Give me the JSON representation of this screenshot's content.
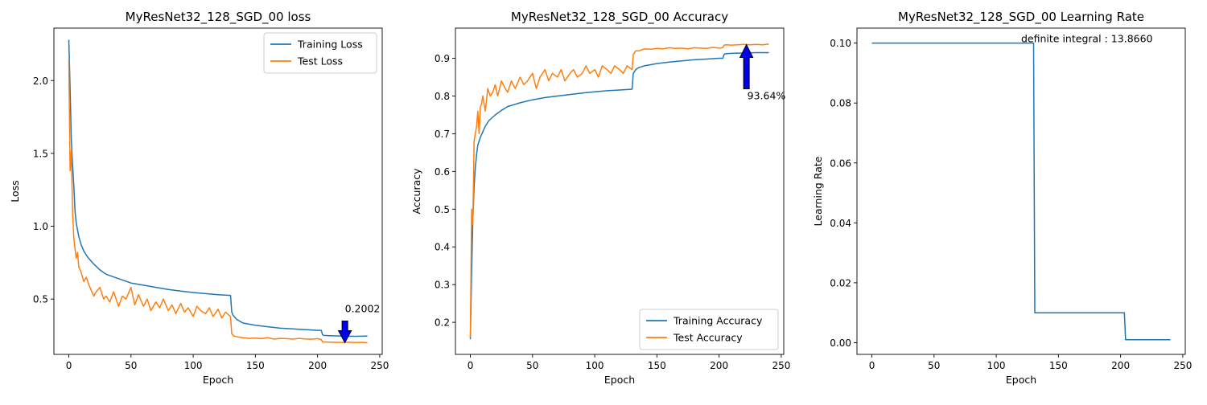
{
  "chart_data": [
    {
      "type": "line",
      "title": "MyResNet32_128_SGD_00 loss",
      "xlabel": "Epoch",
      "ylabel": "Loss",
      "xlim": [
        -12,
        252
      ],
      "ylim": [
        0.12,
        2.36
      ],
      "xticks": [
        0,
        50,
        100,
        150,
        200,
        250
      ],
      "yticks": [
        0.5,
        1.0,
        1.5,
        2.0
      ],
      "xtick_labels": [
        "0",
        "50",
        "100",
        "150",
        "200",
        "250"
      ],
      "ytick_labels": [
        "0.5",
        "1.0",
        "1.5",
        "2.0"
      ],
      "legend_position": "upper right",
      "annotation": {
        "text": "0.2002",
        "x": 222,
        "y": 0.2002,
        "direction": "down"
      },
      "series": [
        {
          "name": "Training Loss",
          "color": "#1f77b4",
          "x": [
            0,
            1,
            2,
            3,
            4,
            5,
            6,
            8,
            10,
            12,
            15,
            20,
            25,
            30,
            40,
            50,
            60,
            70,
            80,
            90,
            100,
            110,
            120,
            130,
            131,
            132,
            135,
            140,
            150,
            160,
            170,
            180,
            190,
            200,
            203,
            204,
            205,
            210,
            220,
            230,
            240
          ],
          "y": [
            2.28,
            1.95,
            1.6,
            1.42,
            1.28,
            1.1,
            1.02,
            0.93,
            0.87,
            0.83,
            0.79,
            0.74,
            0.7,
            0.67,
            0.64,
            0.61,
            0.595,
            0.58,
            0.565,
            0.555,
            0.545,
            0.537,
            0.53,
            0.525,
            0.41,
            0.39,
            0.36,
            0.335,
            0.32,
            0.31,
            0.3,
            0.295,
            0.29,
            0.285,
            0.285,
            0.255,
            0.25,
            0.248,
            0.245,
            0.244,
            0.245
          ]
        },
        {
          "name": "Test Loss",
          "color": "#ff7f0e",
          "x": [
            0,
            1,
            2,
            3,
            4,
            5,
            6,
            7,
            8,
            9,
            10,
            12,
            14,
            16,
            18,
            20,
            22,
            25,
            28,
            30,
            33,
            36,
            40,
            43,
            46,
            50,
            53,
            56,
            60,
            63,
            66,
            70,
            73,
            76,
            80,
            83,
            86,
            90,
            93,
            96,
            100,
            103,
            106,
            110,
            113,
            116,
            120,
            123,
            126,
            130,
            131,
            133,
            136,
            140,
            145,
            150,
            155,
            160,
            165,
            170,
            175,
            180,
            185,
            190,
            195,
            200,
            203,
            204,
            206,
            210,
            215,
            220,
            225,
            230,
            235,
            240
          ],
          "y": [
            2.15,
            1.38,
            1.52,
            1.1,
            0.92,
            0.84,
            0.78,
            0.82,
            0.72,
            0.7,
            0.68,
            0.62,
            0.65,
            0.6,
            0.56,
            0.52,
            0.55,
            0.58,
            0.5,
            0.52,
            0.48,
            0.55,
            0.45,
            0.52,
            0.5,
            0.58,
            0.46,
            0.53,
            0.45,
            0.5,
            0.42,
            0.48,
            0.44,
            0.5,
            0.42,
            0.46,
            0.4,
            0.47,
            0.41,
            0.44,
            0.38,
            0.45,
            0.42,
            0.4,
            0.44,
            0.38,
            0.43,
            0.37,
            0.41,
            0.38,
            0.26,
            0.245,
            0.24,
            0.235,
            0.23,
            0.232,
            0.228,
            0.235,
            0.225,
            0.23,
            0.228,
            0.225,
            0.23,
            0.226,
            0.224,
            0.228,
            0.222,
            0.205,
            0.205,
            0.204,
            0.203,
            0.202,
            0.204,
            0.201,
            0.203,
            0.2
          ]
        }
      ]
    },
    {
      "type": "line",
      "title": "MyResNet32_128_SGD_00 Accuracy",
      "xlabel": "Epoch",
      "ylabel": "Accuracy",
      "xlim": [
        -12,
        252
      ],
      "ylim": [
        0.115,
        0.98
      ],
      "xticks": [
        0,
        50,
        100,
        150,
        200,
        250
      ],
      "yticks": [
        0.2,
        0.3,
        0.4,
        0.5,
        0.6,
        0.7,
        0.8,
        0.9
      ],
      "xtick_labels": [
        "0",
        "50",
        "100",
        "150",
        "200",
        "250"
      ],
      "ytick_labels": [
        "0.2",
        "0.3",
        "0.4",
        "0.5",
        "0.6",
        "0.7",
        "0.8",
        "0.9"
      ],
      "legend_position": "lower right",
      "annotation": {
        "text": "93.64%",
        "x": 222,
        "y": 0.9364,
        "direction": "up"
      },
      "series": [
        {
          "name": "Training Accuracy",
          "color": "#1f77b4",
          "x": [
            0,
            1,
            2,
            3,
            4,
            5,
            6,
            8,
            10,
            12,
            15,
            20,
            25,
            30,
            40,
            50,
            60,
            70,
            80,
            90,
            100,
            110,
            120,
            130,
            131,
            133,
            135,
            140,
            150,
            160,
            170,
            180,
            190,
            200,
            203,
            204,
            205,
            210,
            220,
            230,
            240
          ],
          "y": [
            0.155,
            0.33,
            0.47,
            0.56,
            0.61,
            0.645,
            0.67,
            0.69,
            0.705,
            0.72,
            0.735,
            0.75,
            0.762,
            0.772,
            0.782,
            0.79,
            0.796,
            0.8,
            0.804,
            0.808,
            0.811,
            0.814,
            0.816,
            0.818,
            0.86,
            0.87,
            0.875,
            0.88,
            0.886,
            0.89,
            0.893,
            0.896,
            0.898,
            0.9,
            0.9,
            0.91,
            0.912,
            0.913,
            0.914,
            0.915,
            0.915
          ]
        },
        {
          "name": "Test Accuracy",
          "color": "#ff7f0e",
          "x": [
            0,
            1,
            2,
            3,
            4,
            5,
            6,
            7,
            8,
            9,
            10,
            12,
            14,
            16,
            18,
            20,
            22,
            25,
            28,
            30,
            33,
            36,
            40,
            43,
            46,
            50,
            53,
            56,
            60,
            63,
            66,
            70,
            73,
            76,
            80,
            83,
            86,
            90,
            93,
            96,
            100,
            103,
            106,
            110,
            113,
            116,
            120,
            123,
            126,
            130,
            131,
            133,
            136,
            140,
            145,
            150,
            155,
            160,
            165,
            170,
            175,
            180,
            185,
            190,
            195,
            200,
            203,
            204,
            206,
            210,
            215,
            220,
            225,
            230,
            235,
            240
          ],
          "y": [
            0.16,
            0.5,
            0.46,
            0.68,
            0.7,
            0.72,
            0.76,
            0.7,
            0.77,
            0.78,
            0.8,
            0.76,
            0.82,
            0.8,
            0.81,
            0.83,
            0.8,
            0.84,
            0.82,
            0.81,
            0.84,
            0.82,
            0.85,
            0.83,
            0.84,
            0.86,
            0.82,
            0.85,
            0.87,
            0.84,
            0.86,
            0.85,
            0.87,
            0.84,
            0.86,
            0.87,
            0.85,
            0.86,
            0.88,
            0.86,
            0.87,
            0.85,
            0.88,
            0.87,
            0.86,
            0.88,
            0.87,
            0.86,
            0.88,
            0.87,
            0.91,
            0.92,
            0.92,
            0.925,
            0.924,
            0.926,
            0.925,
            0.928,
            0.926,
            0.927,
            0.925,
            0.928,
            0.927,
            0.926,
            0.929,
            0.927,
            0.928,
            0.935,
            0.936,
            0.935,
            0.936,
            0.937,
            0.936,
            0.937,
            0.936,
            0.938
          ]
        }
      ]
    },
    {
      "type": "line",
      "title": "MyResNet32_128_SGD_00 Learning Rate",
      "xlabel": "Epoch",
      "ylabel": "Learning Rate",
      "xlim": [
        -12,
        252
      ],
      "ylim": [
        -0.0039,
        0.105
      ],
      "xticks": [
        0,
        50,
        100,
        150,
        200,
        250
      ],
      "yticks": [
        0.0,
        0.02,
        0.04,
        0.06,
        0.08,
        0.1
      ],
      "xtick_labels": [
        "0",
        "50",
        "100",
        "150",
        "200",
        "250"
      ],
      "ytick_labels": [
        "0.00",
        "0.02",
        "0.04",
        "0.06",
        "0.08",
        "0.10"
      ],
      "annotation": {
        "text": "definite integral : 13.8660",
        "x": 120,
        "y": 0.1
      },
      "series": [
        {
          "color": "#1f77b4",
          "x": [
            0,
            130,
            131,
            203,
            204,
            240
          ],
          "y": [
            0.1,
            0.1,
            0.01,
            0.01,
            0.001,
            0.001
          ]
        }
      ]
    }
  ]
}
